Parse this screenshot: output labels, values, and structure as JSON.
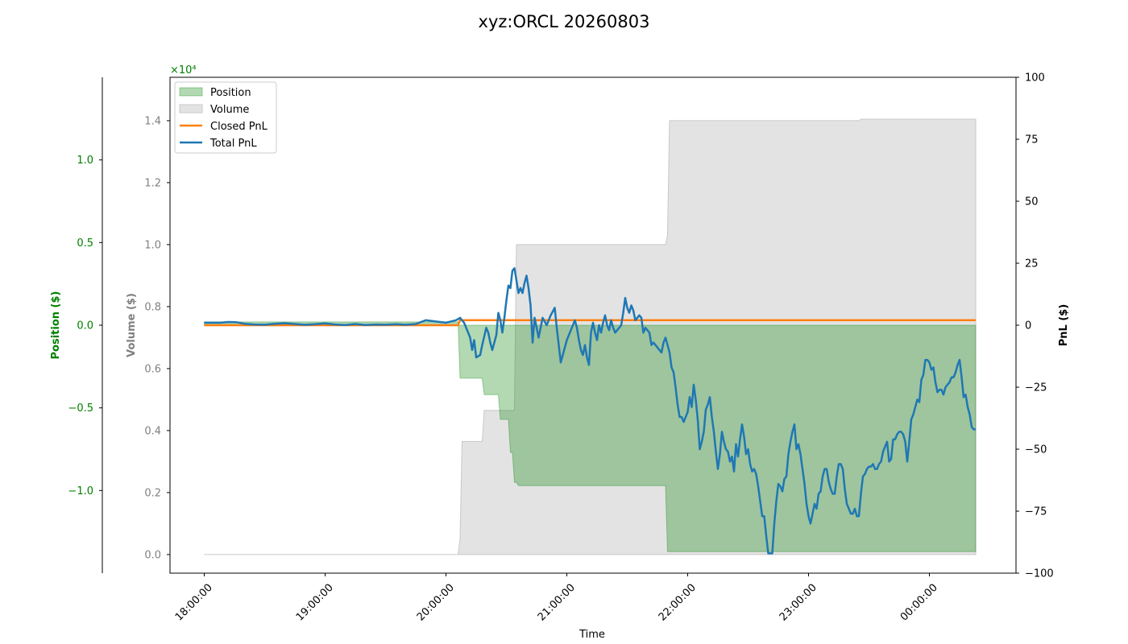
{
  "chart_data": {
    "type": "area",
    "title": "xyz:ORCL 20260803",
    "xlabel": "Time",
    "x_ticks": [
      "18:00:00",
      "19:00:00",
      "20:00:00",
      "21:00:00",
      "22:00:00",
      "23:00:00",
      "00:00:00"
    ],
    "x_range_minutes": [
      -17,
      403
    ],
    "axes": {
      "position": {
        "label": "Position ($)",
        "color": "#008000",
        "range": [
          -1.5,
          1.5
        ],
        "ticks": [
          "-1.0",
          "-0.5",
          "0.0",
          "0.5",
          "1.0"
        ],
        "tick_values": [
          -1.0,
          -0.5,
          0.0,
          0.5,
          1.0
        ],
        "exponent": ""
      },
      "volume": {
        "label": "Volume ($)",
        "color": "#808080",
        "range": [
          -600,
          15400
        ],
        "ticks": [
          "0.0",
          "0.2",
          "0.4",
          "0.6",
          "0.8",
          "1.0",
          "1.2",
          "1.4"
        ],
        "tick_values": [
          0,
          2000,
          4000,
          6000,
          8000,
          10000,
          12000,
          14000
        ],
        "exponent": "×10⁴",
        "exponent_color": "#008000"
      },
      "pnl": {
        "label": "PnL ($)",
        "color": "#000000",
        "range": [
          -100,
          100
        ],
        "ticks": [
          "-100",
          "-75",
          "-50",
          "-25",
          "0",
          "25",
          "50",
          "75",
          "100"
        ],
        "tick_values": [
          -100,
          -75,
          -50,
          -25,
          0,
          25,
          50,
          75,
          100
        ]
      }
    },
    "legend": {
      "placement": "top-left",
      "entries": [
        "Position",
        "Volume",
        "Closed PnL",
        "Total PnL"
      ]
    },
    "colors": {
      "position_fill": "#008000",
      "volume_fill": "#c8c8c8",
      "closed_pnl": "#ff7f0e",
      "total_pnl": "#1f77b4"
    },
    "series": [
      {
        "name": "Position",
        "unit": "$ (×10⁴)",
        "points": [
          [
            0,
            0.02
          ],
          [
            126,
            0.02
          ],
          [
            127,
            -0.32
          ],
          [
            138,
            -0.32
          ],
          [
            139,
            -0.42
          ],
          [
            146,
            -0.42
          ],
          [
            147,
            -0.57
          ],
          [
            151,
            -0.57
          ],
          [
            152,
            -0.77
          ],
          [
            153,
            -0.77
          ],
          [
            154,
            -0.95
          ],
          [
            155,
            -0.95
          ],
          [
            156,
            -0.97
          ],
          [
            229,
            -0.97
          ],
          [
            230,
            -1.37
          ],
          [
            320,
            -1.37
          ],
          [
            325,
            -1.37
          ],
          [
            383,
            -1.37
          ]
        ]
      },
      {
        "name": "Volume",
        "unit": "$",
        "points": [
          [
            0,
            0
          ],
          [
            126,
            0
          ],
          [
            127,
            500
          ],
          [
            128,
            3650
          ],
          [
            138,
            3650
          ],
          [
            139,
            4650
          ],
          [
            154,
            4650
          ],
          [
            155,
            10000
          ],
          [
            229,
            10000
          ],
          [
            230,
            10300
          ],
          [
            231,
            14000
          ],
          [
            325,
            14000
          ],
          [
            326,
            14050
          ],
          [
            383,
            14050
          ]
        ]
      },
      {
        "name": "Closed PnL",
        "unit": "$",
        "points": [
          [
            0,
            0
          ],
          [
            126,
            0
          ],
          [
            127,
            2
          ],
          [
            383,
            2
          ]
        ]
      },
      {
        "name": "Total PnL",
        "unit": "$",
        "points": [
          [
            0,
            1
          ],
          [
            8,
            1
          ],
          [
            12,
            1.3
          ],
          [
            16,
            1.2
          ],
          [
            20,
            0.6
          ],
          [
            25,
            0.3
          ],
          [
            30,
            0.2
          ],
          [
            35,
            0.6
          ],
          [
            40,
            0.8
          ],
          [
            45,
            0.5
          ],
          [
            50,
            0.2
          ],
          [
            55,
            0.4
          ],
          [
            60,
            0.7
          ],
          [
            65,
            0.3
          ],
          [
            70,
            0.1
          ],
          [
            75,
            0.5
          ],
          [
            80,
            0.1
          ],
          [
            85,
            0.3
          ],
          [
            90,
            0.2
          ],
          [
            95,
            0.4
          ],
          [
            100,
            0.2
          ],
          [
            105,
            0.5
          ],
          [
            110,
            2
          ],
          [
            115,
            1.5
          ],
          [
            120,
            1
          ],
          [
            125,
            2
          ],
          [
            127,
            3
          ],
          [
            129,
            1
          ],
          [
            132,
            -5
          ],
          [
            133,
            -10
          ],
          [
            134,
            -6
          ],
          [
            135,
            -13
          ],
          [
            137,
            -12
          ],
          [
            138,
            -8
          ],
          [
            140,
            -1
          ],
          [
            141,
            -3
          ],
          [
            142,
            -7
          ],
          [
            143,
            -10
          ],
          [
            145,
            -4
          ],
          [
            146,
            5
          ],
          [
            147,
            2
          ],
          [
            148,
            -3
          ],
          [
            149,
            3
          ],
          [
            150,
            10
          ],
          [
            151,
            16
          ],
          [
            152,
            15
          ],
          [
            153,
            22
          ],
          [
            154,
            23
          ],
          [
            155,
            18
          ],
          [
            156,
            13
          ],
          [
            157,
            15
          ],
          [
            158,
            13
          ],
          [
            159,
            17
          ],
          [
            160,
            20
          ],
          [
            161,
            15
          ],
          [
            162,
            8
          ],
          [
            163,
            -7
          ],
          [
            164,
            3
          ],
          [
            166,
            -5
          ],
          [
            168,
            3
          ],
          [
            170,
            0
          ],
          [
            172,
            4
          ],
          [
            174,
            7
          ],
          [
            175,
            -1
          ],
          [
            176,
            -8
          ],
          [
            177,
            -15
          ],
          [
            178,
            -12
          ],
          [
            180,
            -6
          ],
          [
            182,
            -2
          ],
          [
            184,
            2
          ],
          [
            185,
            -1
          ],
          [
            186,
            -6
          ],
          [
            187,
            -10
          ],
          [
            188,
            -12
          ],
          [
            189,
            -8
          ],
          [
            190,
            -13
          ],
          [
            191,
            -16
          ],
          [
            192,
            -3
          ],
          [
            193,
            1
          ],
          [
            194,
            -3
          ],
          [
            195,
            -6
          ],
          [
            196,
            0
          ],
          [
            197,
            -3
          ],
          [
            198,
            1
          ],
          [
            199,
            4
          ],
          [
            200,
            0
          ],
          [
            201,
            -2
          ],
          [
            202,
            2
          ],
          [
            203,
            -1
          ],
          [
            204,
            -3
          ],
          [
            205,
            -2
          ],
          [
            206,
            -1
          ],
          [
            207,
            0
          ],
          [
            208,
            5
          ],
          [
            209,
            11
          ],
          [
            210,
            7
          ],
          [
            211,
            5
          ],
          [
            212,
            8
          ],
          [
            213,
            6
          ],
          [
            214,
            2
          ],
          [
            215,
            3
          ],
          [
            216,
            4
          ],
          [
            217,
            3
          ],
          [
            218,
            -3
          ],
          [
            219,
            -1
          ],
          [
            220,
            -2
          ],
          [
            221,
            -3
          ],
          [
            222,
            -8
          ],
          [
            223,
            -7
          ],
          [
            224,
            -8
          ],
          [
            225,
            -9
          ],
          [
            226,
            -10
          ],
          [
            227,
            -11
          ],
          [
            228,
            -7
          ],
          [
            229,
            -5
          ],
          [
            230,
            -8
          ],
          [
            231,
            -11
          ],
          [
            232,
            -17
          ],
          [
            233,
            -19
          ],
          [
            234,
            -25
          ],
          [
            235,
            -32
          ],
          [
            236,
            -37
          ],
          [
            237,
            -37
          ],
          [
            238,
            -39
          ],
          [
            239,
            -37
          ],
          [
            240,
            -35
          ],
          [
            241,
            -29
          ],
          [
            242,
            -33
          ],
          [
            243,
            -24
          ],
          [
            244,
            -30
          ],
          [
            245,
            -38
          ],
          [
            246,
            -50
          ],
          [
            247,
            -47
          ],
          [
            248,
            -43
          ],
          [
            249,
            -34
          ],
          [
            250,
            -32
          ],
          [
            251,
            -29
          ],
          [
            252,
            -37
          ],
          [
            253,
            -43
          ],
          [
            254,
            -51
          ],
          [
            255,
            -58
          ],
          [
            256,
            -52
          ],
          [
            257,
            -43
          ],
          [
            258,
            -47
          ],
          [
            259,
            -50
          ],
          [
            260,
            -51
          ],
          [
            261,
            -55
          ],
          [
            262,
            -53
          ],
          [
            263,
            -59
          ],
          [
            264,
            -48
          ],
          [
            265,
            -53
          ],
          [
            266,
            -46
          ],
          [
            267,
            -40
          ],
          [
            268,
            -45
          ],
          [
            269,
            -52
          ],
          [
            270,
            -50
          ],
          [
            271,
            -56
          ],
          [
            272,
            -59
          ],
          [
            273,
            -58
          ],
          [
            274,
            -60
          ],
          [
            275,
            -65
          ],
          [
            276,
            -71
          ],
          [
            277,
            -77
          ],
          [
            278,
            -77
          ],
          [
            279,
            -85
          ],
          [
            280,
            -92
          ],
          [
            282,
            -92
          ],
          [
            283,
            -80
          ],
          [
            284,
            -71
          ],
          [
            285,
            -64
          ],
          [
            286,
            -65
          ],
          [
            287,
            -67
          ],
          [
            288,
            -62
          ],
          [
            289,
            -61
          ],
          [
            290,
            -52
          ],
          [
            291,
            -47
          ],
          [
            292,
            -43
          ],
          [
            293,
            -40
          ],
          [
            294,
            -50
          ],
          [
            295,
            -48
          ],
          [
            296,
            -52
          ],
          [
            297,
            -58
          ],
          [
            298,
            -64
          ],
          [
            299,
            -72
          ],
          [
            300,
            -77
          ],
          [
            301,
            -80
          ],
          [
            302,
            -76
          ],
          [
            303,
            -72
          ],
          [
            304,
            -74
          ],
          [
            305,
            -68
          ],
          [
            306,
            -67
          ],
          [
            307,
            -61
          ],
          [
            308,
            -58
          ],
          [
            309,
            -58
          ],
          [
            310,
            -63
          ],
          [
            311,
            -66
          ],
          [
            312,
            -68
          ],
          [
            313,
            -68
          ],
          [
            314,
            -61
          ],
          [
            315,
            -56
          ],
          [
            316,
            -56
          ],
          [
            317,
            -58
          ],
          [
            318,
            -66
          ],
          [
            319,
            -72
          ],
          [
            320,
            -74
          ],
          [
            321,
            -76
          ],
          [
            322,
            -76
          ],
          [
            323,
            -74
          ],
          [
            324,
            -77
          ],
          [
            325,
            -77
          ],
          [
            326,
            -68
          ],
          [
            327,
            -61
          ],
          [
            328,
            -60
          ],
          [
            329,
            -58
          ],
          [
            330,
            -57
          ],
          [
            331,
            -57
          ],
          [
            332,
            -56
          ],
          [
            333,
            -58
          ],
          [
            334,
            -58
          ],
          [
            335,
            -56
          ],
          [
            336,
            -55
          ],
          [
            337,
            -51
          ],
          [
            338,
            -49
          ],
          [
            339,
            -47
          ],
          [
            340,
            -55
          ],
          [
            341,
            -54
          ],
          [
            342,
            -46
          ],
          [
            343,
            -46
          ],
          [
            344,
            -44
          ],
          [
            345,
            -43
          ],
          [
            346,
            -43
          ],
          [
            347,
            -44
          ],
          [
            348,
            -47
          ],
          [
            349,
            -55
          ],
          [
            350,
            -47
          ],
          [
            351,
            -38
          ],
          [
            352,
            -36
          ],
          [
            353,
            -33
          ],
          [
            354,
            -30
          ],
          [
            355,
            -31
          ],
          [
            356,
            -22
          ],
          [
            357,
            -20
          ],
          [
            358,
            -14
          ],
          [
            359,
            -14
          ],
          [
            360,
            -15
          ],
          [
            361,
            -18
          ],
          [
            362,
            -17
          ],
          [
            363,
            -23
          ],
          [
            364,
            -27
          ],
          [
            365,
            -26
          ],
          [
            366,
            -26
          ],
          [
            367,
            -28
          ],
          [
            368,
            -25
          ],
          [
            369,
            -24
          ],
          [
            370,
            -23
          ],
          [
            371,
            -21
          ],
          [
            372,
            -21
          ],
          [
            373,
            -19
          ],
          [
            374,
            -16
          ],
          [
            375,
            -14
          ],
          [
            376,
            -21
          ],
          [
            377,
            -29
          ],
          [
            378,
            -28
          ],
          [
            379,
            -33
          ],
          [
            380,
            -36
          ],
          [
            381,
            -41
          ],
          [
            382,
            -42
          ],
          [
            383,
            -42
          ]
        ]
      }
    ]
  }
}
